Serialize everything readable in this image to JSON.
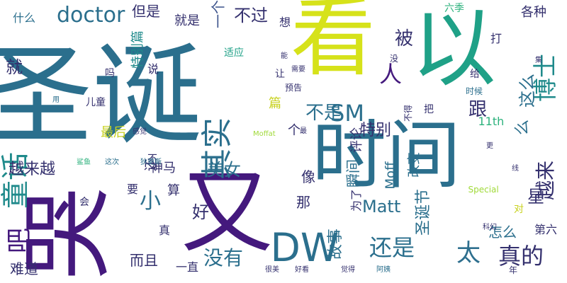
{
  "words": [
    {
      "text": "圣诞",
      "color": "#2b6f8d",
      "rotate": 0
    },
    {
      "text": "看",
      "color": "#d6e21a",
      "rotate": 0
    },
    {
      "text": "时间",
      "color": "#2b6f8d",
      "rotate": 0
    },
    {
      "text": "哭",
      "color": "#44197d",
      "rotate": -90
    },
    {
      "text": "又",
      "color": "#44197d",
      "rotate": 0
    },
    {
      "text": "以",
      "color": "#1fa187",
      "rotate": 0
    },
    {
      "text": "DW",
      "color": "#2b6f8d",
      "rotate": 0
    },
    {
      "text": "童话",
      "color": "#1f8a8b",
      "rotate": -90
    },
    {
      "text": "吧",
      "color": "#44197d",
      "rotate": -90
    },
    {
      "text": "其实",
      "color": "#2b6f8d",
      "rotate": -90
    },
    {
      "text": "博士",
      "color": "#1f8a8b",
      "rotate": -90
    },
    {
      "text": "doctor",
      "color": "#2b6f8d",
      "rotate": 0
    },
    {
      "text": "还是",
      "color": "#2b6f8d",
      "rotate": 0
    },
    {
      "text": "真的",
      "color": "#34306e",
      "rotate": 0
    },
    {
      "text": "太",
      "color": "#2e6f8e",
      "rotate": 0
    },
    {
      "text": "没有",
      "color": "#2b6f8d",
      "rotate": 0
    },
    {
      "text": "SM",
      "color": "#2b6f8d",
      "rotate": 0
    },
    {
      "text": "不是",
      "color": "#2b6f8d",
      "rotate": 0
    },
    {
      "text": "越来",
      "color": "#34306e",
      "rotate": -90
    },
    {
      "text": "这么",
      "color": "#2b6f8d",
      "rotate": -90
    },
    {
      "text": "人",
      "color": "#44197d",
      "rotate": 0
    },
    {
      "text": "不过",
      "color": "#34306e",
      "rotate": 0
    },
    {
      "text": "被",
      "color": "#34306e",
      "rotate": 0
    },
    {
      "text": "跟",
      "color": "#34306e",
      "rotate": 0
    },
    {
      "text": "美女",
      "color": "#2b6f8d",
      "rotate": 0
    },
    {
      "text": "小",
      "color": "#2b6f8d",
      "rotate": 0
    },
    {
      "text": "Matt",
      "color": "#2b6f8d",
      "rotate": 0
    },
    {
      "text": "好",
      "color": "#34306e",
      "rotate": 0
    },
    {
      "text": "就",
      "color": "#34306e",
      "rotate": 0
    },
    {
      "text": "越来越",
      "color": "#34306e",
      "rotate": 0
    },
    {
      "text": "最后",
      "color": "#c8d220",
      "rotate": 0
    },
    {
      "text": "特别",
      "color": "#34306e",
      "rotate": 0
    },
    {
      "text": "一个",
      "color": "#3b528b",
      "rotate": -90
    },
    {
      "text": "但是",
      "color": "#34306e",
      "rotate": 0
    },
    {
      "text": "就是",
      "color": "#34306e",
      "rotate": 0
    },
    {
      "text": "特别篇",
      "color": "#1f8a8b",
      "rotate": -90
    },
    {
      "text": "圣诞节",
      "color": "#2b6f8d",
      "rotate": -90
    },
    {
      "text": "瞬间",
      "color": "#2b6f8d",
      "rotate": -90
    },
    {
      "text": "评论",
      "color": "#34306e",
      "rotate": -90
    },
    {
      "text": "还",
      "color": "#34306e",
      "rotate": -90
    },
    {
      "text": "么",
      "color": "#2b6f8d",
      "rotate": -90
    },
    {
      "text": "星",
      "color": "#34306e",
      "rotate": 0
    },
    {
      "text": "故事",
      "color": "#2b6f8d",
      "rotate": -90
    },
    {
      "text": "怎么",
      "color": "#2b6f8d",
      "rotate": 0
    },
    {
      "text": "而且",
      "color": "#34306e",
      "rotate": 0
    },
    {
      "text": "难道",
      "color": "#34306e",
      "rotate": 0
    },
    {
      "text": "一直",
      "color": "#34306e",
      "rotate": 0
    },
    {
      "text": "什么",
      "color": "#2b6f8d",
      "rotate": 0
    },
    {
      "text": "各种",
      "color": "#34306e",
      "rotate": 0
    },
    {
      "text": "神马",
      "color": "#34306e",
      "rotate": 0
    },
    {
      "text": "第六",
      "color": "#34306e",
      "rotate": 0
    },
    {
      "text": "11th",
      "color": "#2db27d",
      "rotate": 0
    },
    {
      "text": "Special",
      "color": "#a0da39",
      "rotate": 0
    },
    {
      "text": "Moffat",
      "color": "#a0da39",
      "rotate": 0
    },
    {
      "text": "Moff",
      "color": "#2b6f8d",
      "rotate": -90
    },
    {
      "text": "改变",
      "color": "#2b6f8d",
      "rotate": -90
    },
    {
      "text": "为了",
      "color": "#34306e",
      "rotate": -90
    },
    {
      "text": "那",
      "color": "#34306e",
      "rotate": 0
    },
    {
      "text": "像",
      "color": "#34306e",
      "rotate": 0
    },
    {
      "text": "算",
      "color": "#34306e",
      "rotate": 0
    },
    {
      "text": "要",
      "color": "#34306e",
      "rotate": 0
    },
    {
      "text": "会",
      "color": "#34306e",
      "rotate": 0
    },
    {
      "text": "不",
      "color": "#34306e",
      "rotate": 0
    },
    {
      "text": "真",
      "color": "#34306e",
      "rotate": 0
    },
    {
      "text": "个",
      "color": "#34306e",
      "rotate": 0
    },
    {
      "text": "想",
      "color": "#34306e",
      "rotate": 0
    },
    {
      "text": "让",
      "color": "#34306e",
      "rotate": 0
    },
    {
      "text": "说",
      "color": "#34306e",
      "rotate": 0
    },
    {
      "text": "吗",
      "color": "#34306e",
      "rotate": 0
    },
    {
      "text": "打",
      "color": "#34306e",
      "rotate": 0
    },
    {
      "text": "给",
      "color": "#34306e",
      "rotate": 0
    },
    {
      "text": "对",
      "color": "#c8d220",
      "rotate": 0
    },
    {
      "text": "年",
      "color": "#34306e",
      "rotate": 0
    },
    {
      "text": "篇",
      "color": "#c8d220",
      "rotate": 0
    },
    {
      "text": "更",
      "color": "#34306e",
      "rotate": 0
    },
    {
      "text": "集",
      "color": "#34306e",
      "rotate": 0
    },
    {
      "text": "把",
      "color": "#34306e",
      "rotate": 0
    },
    {
      "text": "线",
      "color": "#34306e",
      "rotate": 0
    },
    {
      "text": "没",
      "color": "#34306e",
      "rotate": 0
    },
    {
      "text": "最",
      "color": "#34306e",
      "rotate": 0
    },
    {
      "text": "适应",
      "color": "#1fa187",
      "rotate": 0
    },
    {
      "text": "时候",
      "color": "#2b6f8d",
      "rotate": 0
    },
    {
      "text": "六季",
      "color": "#2db27d",
      "rotate": 0
    },
    {
      "text": "预告",
      "color": "#34306e",
      "rotate": 0
    },
    {
      "text": "儿童",
      "color": "#34306e",
      "rotate": 0
    },
    {
      "text": "感觉",
      "color": "#34306e",
      "rotate": 0
    },
    {
      "text": "觉得",
      "color": "#34306e",
      "rotate": 0
    },
    {
      "text": "阿姨",
      "color": "#2b6f8d",
      "rotate": 0
    },
    {
      "text": "很美",
      "color": "#34306e",
      "rotate": 0
    },
    {
      "text": "好看",
      "color": "#34306e",
      "rotate": 0
    },
    {
      "text": "科幻",
      "color": "#34306e",
      "rotate": 0
    },
    {
      "text": "鲨鱼",
      "color": "#2db27d",
      "rotate": 0
    },
    {
      "text": "这次",
      "color": "#2b6f8d",
      "rotate": 0
    },
    {
      "text": "狄更斯",
      "color": "#2b6f8d",
      "rotate": 0
    },
    {
      "text": "用",
      "color": "#2b6f8d",
      "rotate": 0
    },
    {
      "text": "不得",
      "color": "#34306e",
      "rotate": -90
    },
    {
      "text": "能",
      "color": "#34306e",
      "rotate": 0
    },
    {
      "text": "需要",
      "color": "#34306e",
      "rotate": 0
    }
  ]
}
